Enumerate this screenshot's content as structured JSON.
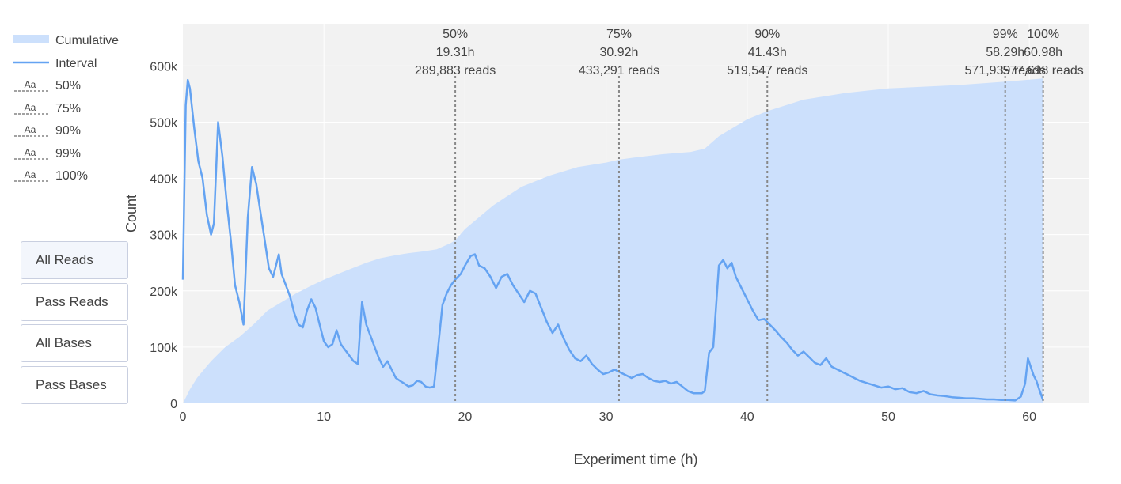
{
  "legend": {
    "items": [
      {
        "label": "Cumulative",
        "kind": "area"
      },
      {
        "label": "Interval",
        "kind": "line"
      },
      {
        "label": "50%",
        "kind": "dashed"
      },
      {
        "label": "75%",
        "kind": "dashed"
      },
      {
        "label": "90%",
        "kind": "dashed"
      },
      {
        "label": "99%",
        "kind": "dashed"
      },
      {
        "label": "100%",
        "kind": "dashed"
      }
    ],
    "glyph_text": "Aa"
  },
  "buttons": [
    {
      "label": "All Reads",
      "active": true
    },
    {
      "label": "Pass Reads",
      "active": false
    },
    {
      "label": "All Bases",
      "active": false
    },
    {
      "label": "Pass Bases",
      "active": false
    }
  ],
  "colors": {
    "cumulative_fill": "#cce0fc",
    "interval_line": "#64a3f2",
    "plot_bg": "#f2f2f2",
    "grid": "#ffffff",
    "marker": "#888888"
  },
  "chart_data": {
    "type": "area",
    "xlabel": "Experiment time (h)",
    "ylabel": "Count",
    "xlim": [
      0,
      64.2
    ],
    "ylim": [
      0,
      675000
    ],
    "xticks": [
      0,
      10,
      20,
      30,
      40,
      50,
      60
    ],
    "yticks": [
      0,
      100000,
      200000,
      300000,
      400000,
      500000,
      600000
    ],
    "ytick_labels": [
      "0",
      "100k",
      "200k",
      "300k",
      "400k",
      "500k",
      "600k"
    ],
    "grid": true,
    "series": [
      {
        "name": "Cumulative",
        "style": "filled-area",
        "x": [
          0,
          0.5,
          1,
          1.5,
          2,
          3,
          4,
          5,
          6,
          7,
          8,
          9,
          10,
          11,
          12,
          13,
          14,
          15,
          16,
          17,
          18,
          19,
          19.31,
          20,
          22,
          24,
          26,
          28,
          30,
          30.92,
          32,
          34,
          36,
          37,
          38,
          40,
          41.43,
          44,
          47,
          50,
          55,
          58.29,
          60.98
        ],
        "y": [
          0,
          25000,
          45000,
          60000,
          75000,
          100000,
          118000,
          140000,
          165000,
          180000,
          195000,
          208000,
          220000,
          230000,
          240000,
          250000,
          258000,
          263000,
          267000,
          270000,
          274000,
          285000,
          289883,
          310000,
          352000,
          385000,
          405000,
          420000,
          428000,
          433291,
          437000,
          443000,
          447000,
          453000,
          475000,
          505000,
          519547,
          540000,
          552000,
          560000,
          566000,
          571939,
          577698
        ]
      },
      {
        "name": "Interval",
        "style": "line",
        "x": [
          0,
          0.2,
          0.35,
          0.5,
          0.8,
          1.1,
          1.4,
          1.7,
          2.0,
          2.2,
          2.5,
          2.8,
          3.1,
          3.4,
          3.7,
          4.0,
          4.3,
          4.6,
          4.9,
          5.2,
          5.5,
          5.8,
          6.1,
          6.4,
          6.6,
          6.8,
          7.0,
          7.3,
          7.6,
          7.9,
          8.2,
          8.5,
          8.8,
          9.1,
          9.4,
          9.7,
          10.0,
          10.3,
          10.6,
          10.9,
          11.2,
          11.5,
          11.8,
          12.1,
          12.4,
          12.7,
          13.0,
          13.3,
          13.6,
          13.9,
          14.2,
          14.5,
          14.8,
          15.1,
          15.4,
          15.7,
          16.0,
          16.3,
          16.6,
          16.9,
          17.2,
          17.5,
          17.8,
          18.1,
          18.4,
          18.7,
          19.0,
          19.3,
          19.7,
          20.0,
          20.4,
          20.7,
          21.0,
          21.4,
          21.8,
          22.2,
          22.6,
          23.0,
          23.4,
          23.8,
          24.2,
          24.6,
          25.0,
          25.4,
          25.8,
          26.2,
          26.6,
          27.0,
          27.4,
          27.8,
          28.2,
          28.6,
          29.0,
          29.4,
          29.8,
          30.2,
          30.6,
          31.0,
          31.4,
          31.8,
          32.2,
          32.6,
          33.0,
          33.4,
          33.8,
          34.2,
          34.6,
          35.0,
          35.4,
          35.8,
          36.2,
          36.5,
          36.8,
          37.0,
          37.3,
          37.6,
          38.0,
          38.3,
          38.6,
          38.9,
          39.2,
          39.6,
          40.0,
          40.4,
          40.8,
          41.2,
          41.6,
          42.0,
          42.4,
          42.8,
          43.2,
          43.6,
          44.0,
          44.4,
          44.8,
          45.2,
          45.6,
          46.0,
          46.4,
          46.8,
          47.2,
          47.6,
          48.0,
          48.5,
          49.0,
          49.5,
          50.0,
          50.5,
          51.0,
          51.5,
          52.0,
          52.5,
          53.0,
          53.5,
          54.0,
          54.5,
          55.0,
          55.5,
          56.0,
          56.5,
          57.0,
          57.5,
          58.0,
          58.5,
          59.0,
          59.4,
          59.7,
          59.9,
          60.1,
          60.3,
          60.5,
          60.7,
          60.98
        ],
        "y": [
          220000,
          530000,
          575000,
          560000,
          490000,
          430000,
          400000,
          335000,
          300000,
          320000,
          500000,
          440000,
          360000,
          290000,
          210000,
          180000,
          140000,
          330000,
          420000,
          390000,
          340000,
          290000,
          240000,
          225000,
          245000,
          265000,
          230000,
          210000,
          190000,
          160000,
          140000,
          135000,
          165000,
          185000,
          170000,
          140000,
          110000,
          100000,
          105000,
          130000,
          105000,
          95000,
          85000,
          75000,
          70000,
          180000,
          140000,
          120000,
          100000,
          80000,
          65000,
          75000,
          60000,
          45000,
          40000,
          35000,
          30000,
          32000,
          40000,
          38000,
          30000,
          28000,
          30000,
          100000,
          175000,
          195000,
          210000,
          220000,
          230000,
          245000,
          262000,
          265000,
          245000,
          240000,
          225000,
          205000,
          225000,
          230000,
          210000,
          195000,
          180000,
          200000,
          195000,
          170000,
          145000,
          125000,
          140000,
          115000,
          95000,
          80000,
          75000,
          85000,
          70000,
          60000,
          52000,
          55000,
          60000,
          55000,
          50000,
          45000,
          50000,
          52000,
          45000,
          40000,
          38000,
          40000,
          35000,
          38000,
          30000,
          22000,
          18000,
          18000,
          18000,
          22000,
          90000,
          100000,
          245000,
          255000,
          240000,
          250000,
          225000,
          205000,
          185000,
          165000,
          148000,
          150000,
          140000,
          130000,
          118000,
          108000,
          95000,
          85000,
          92000,
          82000,
          72000,
          68000,
          80000,
          65000,
          60000,
          55000,
          50000,
          45000,
          40000,
          36000,
          32000,
          28000,
          30000,
          25000,
          27000,
          20000,
          18000,
          22000,
          16000,
          14000,
          13000,
          11000,
          10000,
          9000,
          9000,
          8000,
          7000,
          7000,
          6000,
          6000,
          5000,
          12000,
          35000,
          80000,
          65000,
          50000,
          40000,
          25000,
          5000
        ]
      }
    ],
    "markers": [
      {
        "label": "50%",
        "time": "19.31h",
        "reads": "289,883 reads",
        "x": 19.31
      },
      {
        "label": "75%",
        "time": "30.92h",
        "reads": "433,291 reads",
        "x": 30.92
      },
      {
        "label": "90%",
        "time": "41.43h",
        "reads": "519,547 reads",
        "x": 41.43
      },
      {
        "label": "99%",
        "time": "58.29h",
        "reads": "571,939 reads",
        "x": 58.29
      },
      {
        "label": "100%",
        "time": "60.98h",
        "reads": "577,698 reads",
        "x": 60.98
      }
    ]
  }
}
